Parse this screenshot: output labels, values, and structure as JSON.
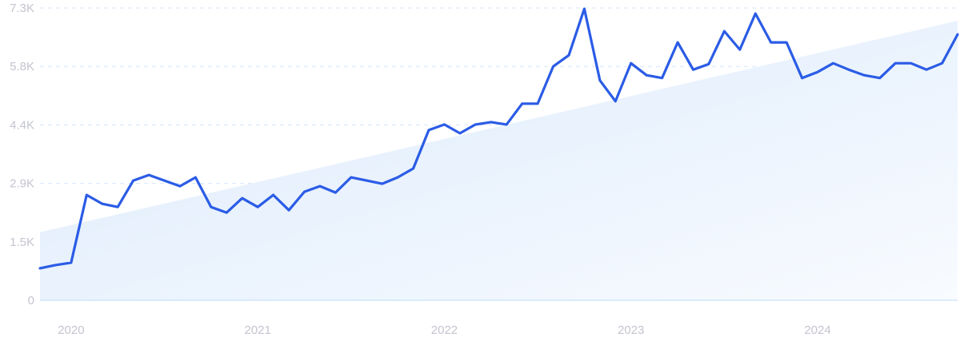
{
  "chart_data": {
    "type": "line",
    "title": "",
    "xlabel": "",
    "ylabel": "",
    "ylim": [
      0,
      7300
    ],
    "y_ticks": [
      0,
      1460,
      2920,
      4380,
      5840,
      7300
    ],
    "y_tick_labels": [
      "0",
      "1.5K",
      "2.9K",
      "4.4K",
      "5.8K",
      "7.3K"
    ],
    "x_tick_labels": [
      "2020",
      "2021",
      "2022",
      "2023",
      "2024"
    ],
    "x_start": "2019-11",
    "x_end": "2024-10",
    "x_interval": "monthly",
    "grid": "horizontal dashed",
    "series": [
      {
        "values": [
          800,
          880,
          940,
          2630,
          2410,
          2330,
          2990,
          3130,
          2990,
          2850,
          3070,
          2330,
          2190,
          2550,
          2330,
          2630,
          2250,
          2710,
          2850,
          2690,
          3070,
          2990,
          2910,
          3070,
          3290,
          4250,
          4390,
          4170,
          4390,
          4450,
          4390,
          4910,
          4910,
          5840,
          6120,
          7280,
          5490,
          4970,
          5920,
          5620,
          5550,
          6440,
          5760,
          5900,
          6720,
          6260,
          7160,
          6440,
          6440,
          5550,
          5700,
          5920,
          5760,
          5620,
          5550,
          5920,
          5920,
          5760,
          5920,
          6640
        ]
      }
    ],
    "trend": {
      "start": 1700,
      "end": 6980
    },
    "colors": {
      "line": "#2b5ce6",
      "trend_fill": "#dbe9fb",
      "grid": "#d6e6fa",
      "tick_text": "#c4c4d0"
    }
  }
}
